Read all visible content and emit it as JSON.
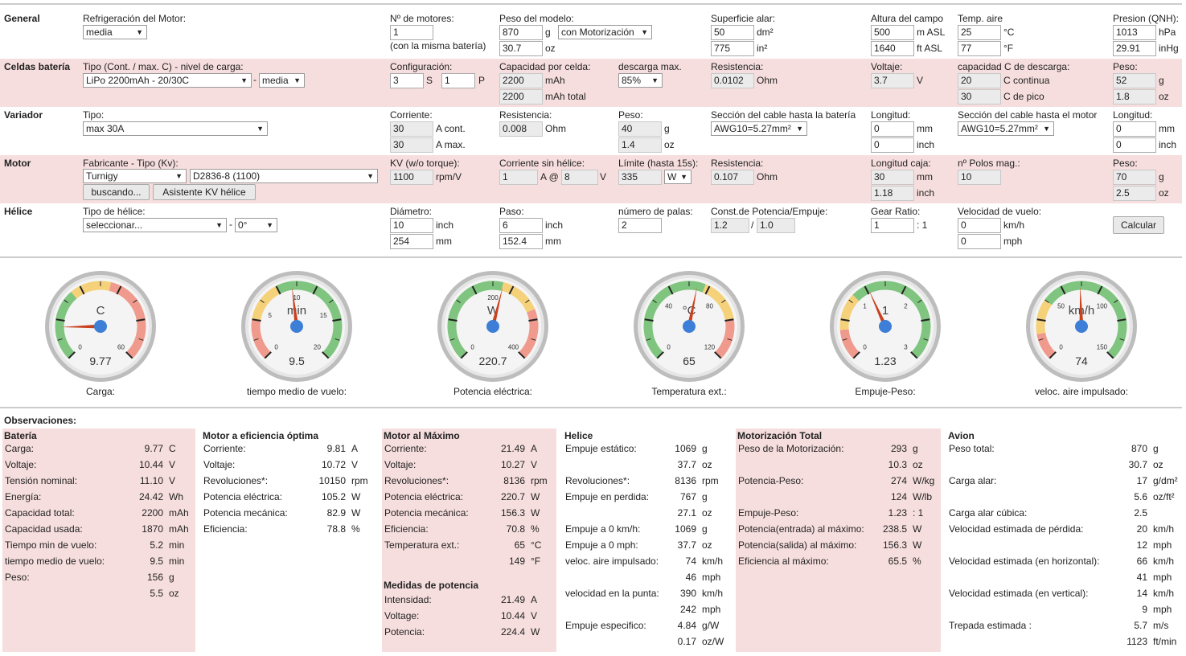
{
  "general": {
    "section": "General",
    "refrig_label": "Refrigeración del Motor:",
    "refrig_value": "media",
    "motores_label": "Nº de motores:",
    "motores_value": "1",
    "motores_note": "(con la misma batería)",
    "peso_label": "Peso del modelo:",
    "peso_g": "870",
    "peso_g_unit": "g",
    "peso_oz": "30.7",
    "peso_oz_unit": "oz",
    "peso_mode": "con Motorización",
    "sup_label": "Superficie alar:",
    "sup_dm": "50",
    "sup_dm_unit": "dm²",
    "sup_in": "775",
    "sup_in_unit": "in²",
    "alt_label": "Altura del campo",
    "alt_m": "500",
    "alt_m_unit": "m ASL",
    "alt_ft": "1640",
    "alt_ft_unit": "ft ASL",
    "temp_label": "Temp. aire",
    "temp_c": "25",
    "temp_c_unit": "°C",
    "temp_f": "77",
    "temp_f_unit": "°F",
    "pres_label": "Presion (QNH):",
    "pres_hpa": "1013",
    "pres_hpa_unit": "hPa",
    "pres_inhg": "29.91",
    "pres_inhg_unit": "inHg"
  },
  "bateria": {
    "section": "Celdas batería",
    "tipo_label": "Tipo (Cont. / max. C) - nivel de carga:",
    "tipo_value": "LiPo 2200mAh - 20/30C",
    "dash": "-",
    "nivel_value": "media",
    "config_label": "Configuración:",
    "s_value": "3",
    "s_unit": "S",
    "p_value": "1",
    "p_unit": "P",
    "cap_label": "Capacidad por celda:",
    "cap_value": "2200",
    "cap_unit": "mAh",
    "cap_total": "2200",
    "cap_total_unit": "mAh total",
    "desc_label": "descarga max.",
    "desc_value": "85%",
    "res_label": "Resistencia:",
    "res_value": "0.0102",
    "res_unit": "Ohm",
    "volt_label": "Voltaje:",
    "volt_value": "3.7",
    "volt_unit": "V",
    "cdesc_label": "capacidad C de descarga:",
    "c_cont": "20",
    "c_cont_unit": "C continua",
    "c_pico": "30",
    "c_pico_unit": "C de pico",
    "peso_label": "Peso:",
    "peso_g": "52",
    "peso_g_unit": "g",
    "peso_oz": "1.8",
    "peso_oz_unit": "oz"
  },
  "variador": {
    "section": "Variador",
    "tipo_label": "Tipo:",
    "tipo_value": "max 30A",
    "corr_label": "Corriente:",
    "corr_cont": "30",
    "corr_cont_unit": "A cont.",
    "corr_max": "30",
    "corr_max_unit": "A max.",
    "res_label": "Resistencia:",
    "res_value": "0.008",
    "res_unit": "Ohm",
    "peso_label": "Peso:",
    "peso_g": "40",
    "peso_g_unit": "g",
    "peso_oz": "1.4",
    "peso_oz_unit": "oz",
    "cable_bat_label": "Sección del cable hasta la batería",
    "cable_bat_value": "AWG10=5.27mm²",
    "long1_label": "Longitud:",
    "long1_mm": "0",
    "long1_mm_unit": "mm",
    "long1_in": "0",
    "long1_in_unit": "inch",
    "cable_mot_label": "Sección del cable hasta el motor",
    "cable_mot_value": "AWG10=5.27mm²",
    "long2_label": "Longitud:",
    "long2_mm": "0",
    "long2_mm_unit": "mm",
    "long2_in": "0",
    "long2_in_unit": "inch"
  },
  "motor": {
    "section": "Motor",
    "fab_label": "Fabricante - Tipo (Kv):",
    "fab_value": "Turnigy",
    "tipo_value": "D2836-8 (1100)",
    "buscar_btn": "buscando...",
    "asistente_btn": "Asistente KV hélice",
    "kv_label": "KV (w/o torque):",
    "kv_value": "1100",
    "kv_unit": "rpm/V",
    "sinh_label": "Corriente sin hélice:",
    "sinh_a": "1",
    "sinh_at": "A @",
    "sinh_v": "8",
    "sinh_v_unit": "V",
    "lim_label": "Límite (hasta 15s):",
    "lim_value": "335",
    "lim_unit": "W",
    "res_label": "Resistencia:",
    "res_value": "0.107",
    "res_unit": "Ohm",
    "caja_label": "Longitud caja:",
    "caja_mm": "30",
    "caja_mm_unit": "mm",
    "caja_in": "1.18",
    "caja_in_unit": "inch",
    "polos_label": "nº Polos mag.:",
    "polos_value": "10",
    "peso_label": "Peso:",
    "peso_g": "70",
    "peso_g_unit": "g",
    "peso_oz": "2.5",
    "peso_oz_unit": "oz"
  },
  "helice": {
    "section": "Hélice",
    "tipo_label": "Tipo de hélice:",
    "tipo_value": "seleccionar...",
    "dash": "-",
    "angle_value": "0°",
    "diam_label": "Diámetro:",
    "diam_in": "10",
    "diam_in_unit": "inch",
    "diam_mm": "254",
    "diam_mm_unit": "mm",
    "paso_label": "Paso:",
    "paso_in": "6",
    "paso_in_unit": "inch",
    "paso_mm": "152.4",
    "paso_mm_unit": "mm",
    "palas_label": "número de palas:",
    "palas_value": "2",
    "const_label": "Const.de Potencia/Empuje:",
    "const_p": "1.2",
    "const_slash": "/",
    "const_e": "1.0",
    "gear_label": "Gear Ratio:",
    "gear_value": "1",
    "gear_unit": ": 1",
    "vel_label": "Velocidad de vuelo:",
    "vel_kmh": "0",
    "vel_kmh_unit": "km/h",
    "vel_mph": "0",
    "vel_mph_unit": "mph",
    "calc_btn": "Calcular"
  },
  "gauges": [
    {
      "unit": "C",
      "value": "9.77",
      "caption": "Carga:",
      "ticks": [
        "0",
        "60"
      ],
      "fraction": 0.163
    },
    {
      "unit": "min",
      "value": "9.5",
      "caption": "tiempo medio de vuelo:",
      "ticks": [
        "0",
        "5",
        "10",
        "15",
        "20"
      ],
      "fraction": 0.475
    },
    {
      "unit": "W",
      "value": "220.7",
      "caption": "Potencia eléctrica:",
      "ticks": [
        "0",
        "200",
        "400"
      ],
      "fraction": 0.552
    },
    {
      "unit": "°C",
      "value": "65",
      "caption": "Temperatura ext.:",
      "ticks": [
        "0",
        "40",
        "80",
        "120"
      ],
      "fraction": 0.542
    },
    {
      "unit": "1",
      "value": "1.23",
      "caption": "Empuje-Peso:",
      "ticks": [
        "0",
        "1",
        "2",
        "3"
      ],
      "fraction": 0.41
    },
    {
      "unit": "km/h",
      "value": "74",
      "caption": "veloc. aire impulsado:",
      "ticks": [
        "0",
        "50",
        "100",
        "150"
      ],
      "fraction": 0.493
    }
  ],
  "observaciones": "Observaciones:",
  "results": [
    {
      "title": "Batería",
      "rows": [
        [
          "Carga:",
          "9.77",
          "C"
        ],
        [
          "Voltaje:",
          "10.44",
          "V"
        ],
        [
          "Tensión nominal:",
          "11.10",
          "V"
        ],
        [
          "Energía:",
          "24.42",
          "Wh"
        ],
        [
          "Capacidad total:",
          "2200",
          "mAh"
        ],
        [
          "Capacidad usada:",
          "1870",
          "mAh"
        ],
        [
          "Tiempo min de vuelo:",
          "5.2",
          "min"
        ],
        [
          "tiempo medio de vuelo:",
          "9.5",
          "min"
        ],
        [
          "Peso:",
          "156",
          "g"
        ],
        [
          "",
          "5.5",
          "oz"
        ]
      ]
    },
    {
      "title": "Motor a eficiencia óptima",
      "rows": [
        [
          "Corriente:",
          "9.81",
          "A"
        ],
        [
          "Voltaje:",
          "10.72",
          "V"
        ],
        [
          "Revoluciones*:",
          "10150",
          "rpm"
        ],
        [
          "Potencia eléctrica:",
          "105.2",
          "W"
        ],
        [
          "Potencia mecánica:",
          "82.9",
          "W"
        ],
        [
          "Eficiencia:",
          "78.8",
          "%"
        ]
      ]
    },
    {
      "title": "Motor al Máximo",
      "rows": [
        [
          "Corriente:",
          "21.49",
          "A"
        ],
        [
          "Voltaje:",
          "10.27",
          "V"
        ],
        [
          "Revoluciones*:",
          "8136",
          "rpm"
        ],
        [
          "Potencia eléctrica:",
          "220.7",
          "W"
        ],
        [
          "Potencia mecánica:",
          "156.3",
          "W"
        ],
        [
          "Eficiencia:",
          "70.8",
          "%"
        ],
        [
          "Temperatura ext.:",
          "65",
          "°C"
        ],
        [
          "",
          "149",
          "°F"
        ]
      ],
      "sub_title": "Medidas de potencia",
      "sub_rows": [
        [
          "Intensidad:",
          "21.49",
          "A"
        ],
        [
          "Voltage:",
          "10.44",
          "V"
        ],
        [
          "Potencia:",
          "224.4",
          "W"
        ]
      ]
    },
    {
      "title": "Helice",
      "rows": [
        [
          "Empuje estático:",
          "1069",
          "g"
        ],
        [
          "",
          "37.7",
          "oz"
        ],
        [
          "Revoluciones*:",
          "8136",
          "rpm"
        ],
        [
          "Empuje en perdida:",
          "767",
          "g"
        ],
        [
          "",
          "27.1",
          "oz"
        ],
        [
          "Empuje a 0 km/h:",
          "1069",
          "g"
        ],
        [
          "Empuje a 0 mph:",
          "37.7",
          "oz"
        ],
        [
          "veloc. aire impulsado:",
          "74",
          "km/h"
        ],
        [
          "",
          "46",
          "mph"
        ],
        [
          "velocidad en la punta:",
          "390",
          "km/h"
        ],
        [
          "",
          "242",
          "mph"
        ],
        [
          "Empuje especifico:",
          "4.84",
          "g/W"
        ],
        [
          "",
          "0.17",
          "oz/W"
        ]
      ]
    },
    {
      "title": "Motorización Total",
      "rows": [
        [
          "Peso de la Motorización:",
          "293",
          "g"
        ],
        [
          "",
          "10.3",
          "oz"
        ],
        [
          "Potencia-Peso:",
          "274",
          "W/kg"
        ],
        [
          "",
          "124",
          "W/lb"
        ],
        [
          "Empuje-Peso:",
          "1.23",
          ": 1"
        ],
        [
          "Potencia(entrada) al máximo:",
          "238.5",
          "W"
        ],
        [
          "Potencia(salida) al máximo:",
          "156.3",
          "W"
        ],
        [
          "Eficiencia al máximo:",
          "65.5",
          "%"
        ]
      ]
    },
    {
      "title": "Avion",
      "rows": [
        [
          "Peso total:",
          "870",
          "g"
        ],
        [
          "",
          "30.7",
          "oz"
        ],
        [
          "Carga alar:",
          "17",
          "g/dm²"
        ],
        [
          "",
          "5.6",
          "oz/ft²"
        ],
        [
          "Carga alar cúbica:",
          "2.5",
          ""
        ],
        [
          "Velocidad estimada de pérdida:",
          "20",
          "km/h"
        ],
        [
          "",
          "12",
          "mph"
        ],
        [
          "Velocidad estimada (en horizontal):",
          "66",
          "km/h"
        ],
        [
          "",
          "41",
          "mph"
        ],
        [
          "Velocidad estimada (en vertical):",
          "14",
          "km/h"
        ],
        [
          "",
          "9",
          "mph"
        ],
        [
          "Trepada estimada :",
          "5.7",
          "m/s"
        ],
        [
          "",
          "1123",
          "ft/min"
        ]
      ]
    }
  ]
}
